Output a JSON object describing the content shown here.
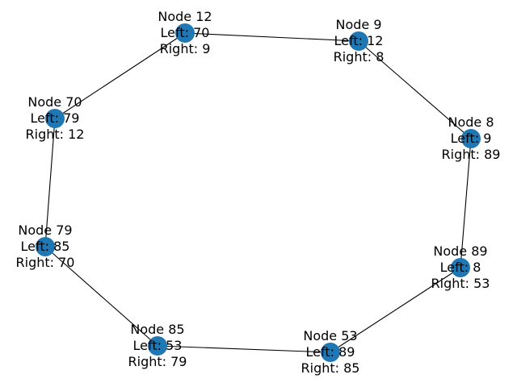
{
  "colors": {
    "node_fill": "#1f77b4",
    "edge": "#000000",
    "label": "#000000",
    "background": "#ffffff"
  },
  "nodes": [
    {
      "id": "12",
      "lines": [
        "Node 12",
        "Left: 70",
        "Right: 9"
      ]
    },
    {
      "id": "9",
      "lines": [
        "Node 9",
        "Left: 12",
        "Right: 8"
      ]
    },
    {
      "id": "8",
      "lines": [
        "Node 8",
        "Left: 9",
        "Right: 89"
      ]
    },
    {
      "id": "89",
      "lines": [
        "Node 89",
        "Left: 8",
        "Right: 53"
      ]
    },
    {
      "id": "53",
      "lines": [
        "Node 53",
        "Left: 89",
        "Right: 85"
      ]
    },
    {
      "id": "85",
      "lines": [
        "Node 85",
        "Left: 53",
        "Right: 79"
      ]
    },
    {
      "id": "79",
      "lines": [
        "Node 79",
        "Left: 85",
        "Right: 70"
      ]
    },
    {
      "id": "70",
      "lines": [
        "Node 70",
        "Left: 79",
        "Right: 12"
      ]
    }
  ],
  "edges": [
    [
      "12",
      "9"
    ],
    [
      "9",
      "8"
    ],
    [
      "8",
      "89"
    ],
    [
      "89",
      "53"
    ],
    [
      "53",
      "85"
    ],
    [
      "85",
      "79"
    ],
    [
      "79",
      "70"
    ],
    [
      "70",
      "12"
    ]
  ]
}
